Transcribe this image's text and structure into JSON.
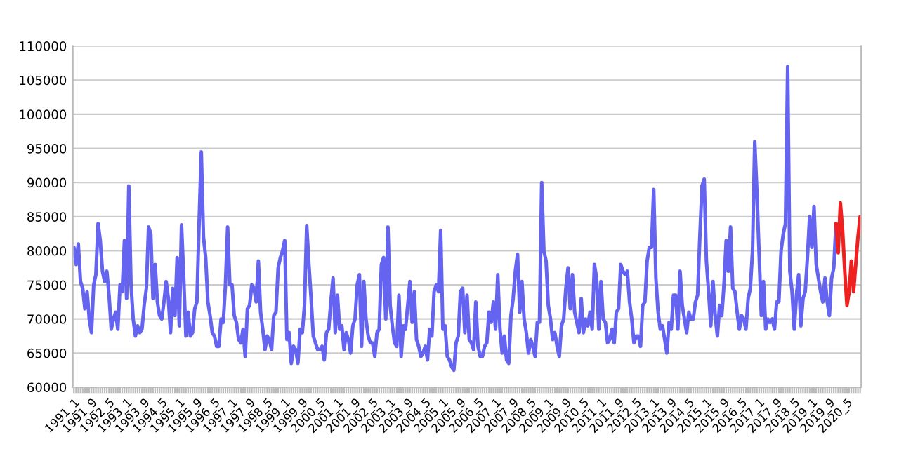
{
  "chart_data": {
    "type": "line",
    "categories": [
      "1991_1",
      null,
      null,
      null,
      null,
      null,
      null,
      null,
      "1991_9",
      null,
      null,
      null,
      null,
      null,
      null,
      null,
      "1992_5",
      null,
      null,
      null,
      null,
      null,
      null,
      null,
      "1993_1",
      null,
      null,
      null,
      null,
      null,
      null,
      null,
      "1993_9",
      null,
      null,
      null,
      null,
      null,
      null,
      null,
      "1994_5",
      null,
      null,
      null,
      null,
      null,
      null,
      null,
      "1995_1",
      null,
      null,
      null,
      null,
      null,
      null,
      null,
      "1995_9",
      null,
      null,
      null,
      null,
      null,
      null,
      null,
      "1996_5",
      null,
      null,
      null,
      null,
      null,
      null,
      null,
      "1997_1",
      null,
      null,
      null,
      null,
      null,
      null,
      null,
      "1997_9",
      null,
      null,
      null,
      null,
      null,
      null,
      null,
      "1998_5",
      null,
      null,
      null,
      null,
      null,
      null,
      null,
      "1999_1",
      null,
      null,
      null,
      null,
      null,
      null,
      null,
      "1999_9",
      null,
      null,
      null,
      null,
      null,
      null,
      null,
      "2000_5",
      null,
      null,
      null,
      null,
      null,
      null,
      null,
      "2001_1",
      null,
      null,
      null,
      null,
      null,
      null,
      null,
      "2001_9",
      null,
      null,
      null,
      null,
      null,
      null,
      null,
      "2002_5",
      null,
      null,
      null,
      null,
      null,
      null,
      null,
      "2003_1",
      null,
      null,
      null,
      null,
      null,
      null,
      null,
      "2003_9",
      null,
      null,
      null,
      null,
      null,
      null,
      null,
      "2004_5",
      null,
      null,
      null,
      null,
      null,
      null,
      null,
      "2005_1",
      null,
      null,
      null,
      null,
      null,
      null,
      null,
      "2005_9",
      null,
      null,
      null,
      null,
      null,
      null,
      null,
      "2006_5",
      null,
      null,
      null,
      null,
      null,
      null,
      null,
      "2007_1",
      null,
      null,
      null,
      null,
      null,
      null,
      null,
      "2007_9",
      null,
      null,
      null,
      null,
      null,
      null,
      null,
      "2008_5",
      null,
      null,
      null,
      null,
      null,
      null,
      null,
      "2009_1",
      null,
      null,
      null,
      null,
      null,
      null,
      null,
      "2009_9",
      null,
      null,
      null,
      null,
      null,
      null,
      null,
      "2010_5",
      null,
      null,
      null,
      null,
      null,
      null,
      null,
      "2011_1",
      null,
      null,
      null,
      null,
      null,
      null,
      null,
      "2011_9",
      null,
      null,
      null,
      null,
      null,
      null,
      null,
      "2012_5",
      null,
      null,
      null,
      null,
      null,
      null,
      null,
      "2013_1",
      null,
      null,
      null,
      null,
      null,
      null,
      null,
      "2013_9",
      null,
      null,
      null,
      null,
      null,
      null,
      null,
      "2014_5",
      null,
      null,
      null,
      null,
      null,
      null,
      null,
      "2015_1",
      null,
      null,
      null,
      null,
      null,
      null,
      null,
      "2015_9",
      null,
      null,
      null,
      null,
      null,
      null,
      null,
      "2016_5",
      null,
      null,
      null,
      null,
      null,
      null,
      null,
      "2017_1",
      null,
      null,
      null,
      null,
      null,
      null,
      null,
      "2017_9",
      null,
      null,
      null,
      null,
      null,
      null,
      null,
      "2018_5",
      null,
      null,
      null,
      null,
      null,
      null,
      null,
      "2019_1",
      null,
      null,
      null,
      null,
      null,
      null,
      null,
      "2019_9",
      null,
      null,
      null,
      null,
      null,
      null,
      null,
      "2020_5",
      null,
      null,
      null,
      null,
      null,
      null
    ],
    "series": [
      {
        "color": "#6464f0",
        "values": [
          80500,
          78000,
          81000,
          75500,
          74500,
          71500,
          74000,
          70000,
          68000,
          75000,
          76500,
          84000,
          81500,
          77000,
          75500,
          77000,
          73500,
          68500,
          70000,
          71000,
          68500,
          75000,
          74000,
          81500,
          73000,
          89500,
          75000,
          70000,
          67500,
          69000,
          68000,
          68500,
          72000,
          74500,
          83500,
          82500,
          73000,
          78000,
          72500,
          70500,
          70000,
          72500,
          75500,
          73000,
          68000,
          74500,
          70500,
          79000,
          69000,
          83800,
          76000,
          67500,
          71000,
          67500,
          68000,
          71500,
          72500,
          84000,
          94500,
          82000,
          79000,
          72500,
          70500,
          68000,
          67500,
          66000,
          66000,
          70000,
          69500,
          75000,
          83500,
          75000,
          75000,
          70500,
          69500,
          67000,
          66500,
          68500,
          64500,
          71500,
          72000,
          75000,
          74500,
          72500,
          78500,
          71000,
          68500,
          65500,
          67500,
          67000,
          65500,
          70500,
          71000,
          77500,
          79000,
          80000,
          81500,
          67000,
          68000,
          63500,
          66000,
          65500,
          63500,
          68500,
          68000,
          72000,
          83700,
          78000,
          73000,
          67500,
          66500,
          65500,
          65500,
          66000,
          64000,
          68000,
          68500,
          72500,
          76000,
          68000,
          73500,
          68500,
          69000,
          65500,
          68000,
          67000,
          65000,
          69000,
          70000,
          75000,
          76500,
          66000,
          75500,
          70000,
          67500,
          66500,
          66500,
          64500,
          68000,
          68500,
          78000,
          79000,
          70000,
          83500,
          72000,
          69000,
          66500,
          66000,
          73500,
          64500,
          69000,
          68500,
          72000,
          75500,
          69500,
          74000,
          67000,
          66000,
          64500,
          65000,
          66000,
          64000,
          68500,
          67500,
          74000,
          75000,
          74000,
          83000,
          68500,
          69000,
          64500,
          64000,
          63000,
          62500,
          66500,
          67500,
          74000,
          74500,
          68000,
          73500,
          67000,
          66500,
          65500,
          72500,
          66000,
          64500,
          64500,
          66000,
          66500,
          71000,
          69500,
          72500,
          68500,
          76500,
          68500,
          65000,
          67500,
          64000,
          63500,
          70500,
          73000,
          77000,
          79500,
          71000,
          75500,
          70000,
          68000,
          65000,
          67000,
          66000,
          64500,
          69500,
          69500,
          90000,
          80000,
          78500,
          72000,
          70000,
          67000,
          68000,
          66000,
          64500,
          69000,
          70000,
          74500,
          77500,
          71500,
          76500,
          71000,
          69500,
          68000,
          73000,
          68000,
          70000,
          69000,
          71000,
          68500,
          78000,
          76000,
          68500,
          75500,
          70000,
          69500,
          66500,
          67000,
          68500,
          66500,
          71000,
          71500,
          78000,
          77000,
          76500,
          77000,
          72500,
          70000,
          66500,
          67500,
          67500,
          66000,
          72000,
          72500,
          78500,
          80500,
          80500,
          89000,
          76000,
          71000,
          68500,
          69000,
          67000,
          65000,
          69500,
          68500,
          73500,
          73500,
          68500,
          77000,
          72000,
          70000,
          68000,
          71000,
          70000,
          70000,
          72500,
          73500,
          82000,
          89500,
          90500,
          78500,
          74000,
          69000,
          75500,
          70500,
          67500,
          72000,
          70500,
          75000,
          81500,
          77000,
          83500,
          74500,
          74000,
          71000,
          68500,
          70500,
          70000,
          68500,
          73000,
          74500,
          80000,
          96000,
          88500,
          79500,
          70500,
          75500,
          68500,
          70000,
          69500,
          70000,
          68500,
          72500,
          72500,
          80000,
          82500,
          84000,
          107000,
          77000,
          74000,
          68500,
          73500,
          76500,
          69000,
          73000,
          74000,
          79000,
          85000,
          80500,
          86500,
          78000,
          76000,
          74000,
          72500,
          76000,
          72500,
          70500,
          76000,
          77500,
          84000,
          null,
          null,
          null,
          null,
          null,
          null,
          null,
          null,
          null,
          null,
          null
        ]
      },
      {
        "color": "#ee2020",
        "values": [
          null,
          null,
          null,
          null,
          null,
          null,
          null,
          null,
          null,
          null,
          null,
          null,
          null,
          null,
          null,
          null,
          null,
          null,
          null,
          null,
          null,
          null,
          null,
          null,
          null,
          null,
          null,
          null,
          null,
          null,
          null,
          null,
          null,
          null,
          null,
          null,
          null,
          null,
          null,
          null,
          null,
          null,
          null,
          null,
          null,
          null,
          null,
          null,
          null,
          null,
          null,
          null,
          null,
          null,
          null,
          null,
          null,
          null,
          null,
          null,
          null,
          null,
          null,
          null,
          null,
          null,
          null,
          null,
          null,
          null,
          null,
          null,
          null,
          null,
          null,
          null,
          null,
          null,
          null,
          null,
          null,
          null,
          null,
          null,
          null,
          null,
          null,
          null,
          null,
          null,
          null,
          null,
          null,
          null,
          null,
          null,
          null,
          null,
          null,
          null,
          null,
          null,
          null,
          null,
          null,
          null,
          null,
          null,
          null,
          null,
          null,
          null,
          null,
          null,
          null,
          null,
          null,
          null,
          null,
          null,
          null,
          null,
          null,
          null,
          null,
          null,
          null,
          null,
          null,
          null,
          null,
          null,
          null,
          null,
          null,
          null,
          null,
          null,
          null,
          null,
          null,
          null,
          null,
          null,
          null,
          null,
          null,
          null,
          null,
          null,
          null,
          null,
          null,
          null,
          null,
          null,
          null,
          null,
          null,
          null,
          null,
          null,
          null,
          null,
          null,
          null,
          null,
          null,
          null,
          null,
          null,
          null,
          null,
          null,
          null,
          null,
          null,
          null,
          null,
          null,
          null,
          null,
          null,
          null,
          null,
          null,
          null,
          null,
          null,
          null,
          null,
          null,
          null,
          null,
          null,
          null,
          null,
          null,
          null,
          null,
          null,
          null,
          null,
          null,
          null,
          null,
          null,
          null,
          null,
          null,
          null,
          null,
          null,
          null,
          null,
          null,
          null,
          null,
          null,
          null,
          null,
          null,
          null,
          null,
          null,
          null,
          null,
          null,
          null,
          null,
          null,
          null,
          null,
          null,
          null,
          null,
          null,
          null,
          null,
          null,
          null,
          null,
          null,
          null,
          null,
          null,
          null,
          null,
          null,
          null,
          null,
          null,
          null,
          null,
          null,
          null,
          null,
          null,
          null,
          null,
          null,
          null,
          null,
          null,
          null,
          null,
          null,
          null,
          null,
          null,
          null,
          null,
          null,
          null,
          null,
          null,
          null,
          null,
          null,
          null,
          null,
          null,
          null,
          null,
          null,
          null,
          null,
          null,
          null,
          null,
          null,
          null,
          null,
          null,
          null,
          null,
          null,
          null,
          null,
          null,
          null,
          null,
          null,
          null,
          null,
          null,
          null,
          null,
          null,
          null,
          null,
          null,
          null,
          null,
          null,
          null,
          null,
          null,
          null,
          null,
          null,
          null,
          null,
          null,
          null,
          null,
          null,
          null,
          null,
          null,
          null,
          null,
          null,
          null,
          null,
          null,
          null,
          null,
          null,
          null,
          null,
          null,
          null,
          null,
          null,
          null,
          null,
          84000,
          79700,
          87000,
          83000,
          77000,
          72000,
          74000,
          78500,
          74000,
          78000,
          82000,
          85000
        ]
      }
    ],
    "ylim": [
      60000,
      110000
    ],
    "yticks": [
      60000,
      65000,
      70000,
      75000,
      80000,
      85000,
      90000,
      95000,
      100000,
      105000,
      110000
    ],
    "grid": "y"
  }
}
